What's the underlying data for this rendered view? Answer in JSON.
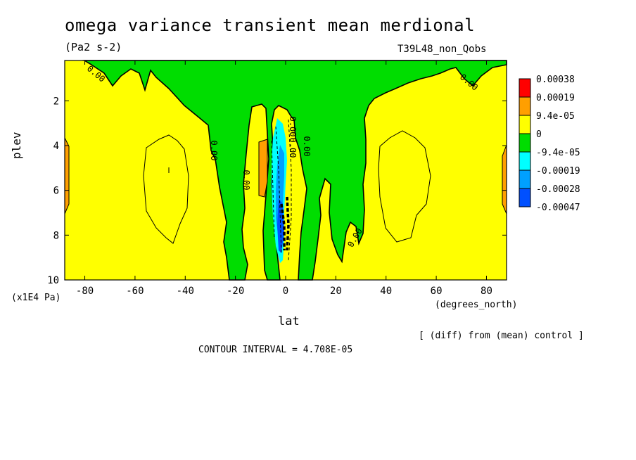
{
  "chart_data": {
    "type": "heatmap",
    "title": "omega variance transient mean merdional",
    "units": "(Pa2 s-2)",
    "run_id": "T39L48_non_Qobs",
    "xlabel": "lat",
    "xunits": "(degrees_north)",
    "ylabel": "plev",
    "yunits": "(x1E4 Pa)",
    "x_ticks": [
      -80,
      -60,
      -40,
      -20,
      0,
      20,
      40,
      60,
      80
    ],
    "y_ticks": [
      2,
      4,
      6,
      8,
      10
    ],
    "xlim": [
      -88,
      88
    ],
    "ylim": [
      10,
      0.2
    ],
    "note": "[ (diff) from (mean) control ]",
    "contour_interval": "CONTOUR INTERVAL = 4.708E-05",
    "contour_labels": [
      "0.00",
      "0.00",
      "0.00",
      "0.00",
      "0.00",
      "0.00",
      "0.00",
      "0.00"
    ],
    "colorbar": {
      "labels": [
        "0.00038",
        "0.00019",
        "9.4e-05",
        "0",
        "-9.4e-05",
        "-0.00019",
        "-0.00028",
        "-0.00047"
      ],
      "colors": [
        "#ff0000",
        "#ff9f00",
        "#ffff00",
        "#00dd00",
        "#00ffff",
        "#00a0ff",
        "#0050ff"
      ]
    },
    "regions": [
      {
        "level_color": "#ffff00",
        "desc": "background positive"
      },
      {
        "level_color": "#00dd00",
        "desc": "negative band"
      }
    ]
  }
}
